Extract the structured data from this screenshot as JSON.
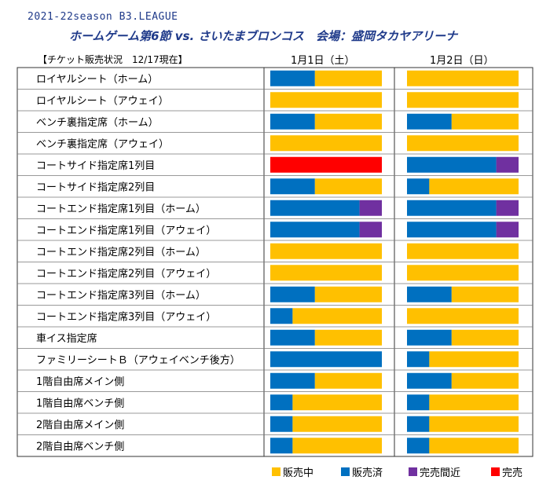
{
  "header": {
    "line1": "2021-22season B3.LEAGUE",
    "line2": "ホームゲーム第6節 vs. さいたまブロンコス　会場：盛岡タカヤアリーナ",
    "status": "【チケット販売状況　12/17現在】"
  },
  "chart_data": {
    "type": "bar",
    "orientation": "horizontal",
    "stacked": true,
    "dates": [
      "1月1日（土）",
      "1月2日（日）"
    ],
    "categories": [
      "ロイヤルシート（ホーム）",
      "ロイヤルシート（アウェイ）",
      "ベンチ裏指定席（ホーム）",
      "ベンチ裏指定席（アウェイ）",
      "コートサイド指定席1列目",
      "コートサイド指定席2列目",
      "コートエンド指定席1列目（ホーム）",
      "コートエンド指定席1列目（アウェイ）",
      "コートエンド指定席2列目（ホーム）",
      "コートエンド指定席2列目（アウェイ）",
      "コートエンド指定席3列目（ホーム）",
      "コートエンド指定席3列目（アウェイ）",
      "車イス指定席",
      "ファミリーシートＢ（アウェイベンチ後方）",
      "1階自由席メイン側",
      "1階自由席ベンチ側",
      "2階自由席メイン側",
      "2階自由席ベンチ側"
    ],
    "statuses": [
      {
        "key": "on_sale",
        "label": "販売中",
        "color": "#FFC000"
      },
      {
        "key": "sold",
        "label": "販売済",
        "color": "#0070C0"
      },
      {
        "key": "almost",
        "label": "完売間近",
        "color": "#7030A0"
      },
      {
        "key": "sold_out",
        "label": "完売",
        "color": "#FF0000"
      }
    ],
    "stack_order": [
      "sold_out",
      "sold",
      "almost",
      "on_sale"
    ],
    "series": [
      {
        "date_index": 0,
        "values": [
          {
            "sold": 40,
            "almost": 0,
            "on_sale": 60,
            "sold_out": 0
          },
          {
            "sold": 0,
            "almost": 0,
            "on_sale": 100,
            "sold_out": 0
          },
          {
            "sold": 40,
            "almost": 0,
            "on_sale": 60,
            "sold_out": 0
          },
          {
            "sold": 0,
            "almost": 0,
            "on_sale": 100,
            "sold_out": 0
          },
          {
            "sold": 0,
            "almost": 0,
            "on_sale": 0,
            "sold_out": 100
          },
          {
            "sold": 40,
            "almost": 0,
            "on_sale": 60,
            "sold_out": 0
          },
          {
            "sold": 80,
            "almost": 20,
            "on_sale": 0,
            "sold_out": 0
          },
          {
            "sold": 80,
            "almost": 20,
            "on_sale": 0,
            "sold_out": 0
          },
          {
            "sold": 0,
            "almost": 0,
            "on_sale": 100,
            "sold_out": 0
          },
          {
            "sold": 0,
            "almost": 0,
            "on_sale": 100,
            "sold_out": 0
          },
          {
            "sold": 40,
            "almost": 0,
            "on_sale": 60,
            "sold_out": 0
          },
          {
            "sold": 20,
            "almost": 0,
            "on_sale": 80,
            "sold_out": 0
          },
          {
            "sold": 40,
            "almost": 0,
            "on_sale": 60,
            "sold_out": 0
          },
          {
            "sold": 100,
            "almost": 0,
            "on_sale": 0,
            "sold_out": 0
          },
          {
            "sold": 40,
            "almost": 0,
            "on_sale": 60,
            "sold_out": 0
          },
          {
            "sold": 20,
            "almost": 0,
            "on_sale": 80,
            "sold_out": 0
          },
          {
            "sold": 20,
            "almost": 0,
            "on_sale": 80,
            "sold_out": 0
          },
          {
            "sold": 20,
            "almost": 0,
            "on_sale": 80,
            "sold_out": 0
          }
        ]
      },
      {
        "date_index": 1,
        "values": [
          {
            "sold": 0,
            "almost": 0,
            "on_sale": 100,
            "sold_out": 0
          },
          {
            "sold": 0,
            "almost": 0,
            "on_sale": 100,
            "sold_out": 0
          },
          {
            "sold": 40,
            "almost": 0,
            "on_sale": 60,
            "sold_out": 0
          },
          {
            "sold": 0,
            "almost": 0,
            "on_sale": 100,
            "sold_out": 0
          },
          {
            "sold": 80,
            "almost": 20,
            "on_sale": 0,
            "sold_out": 0
          },
          {
            "sold": 20,
            "almost": 0,
            "on_sale": 80,
            "sold_out": 0
          },
          {
            "sold": 80,
            "almost": 20,
            "on_sale": 0,
            "sold_out": 0
          },
          {
            "sold": 80,
            "almost": 20,
            "on_sale": 0,
            "sold_out": 0
          },
          {
            "sold": 0,
            "almost": 0,
            "on_sale": 100,
            "sold_out": 0
          },
          {
            "sold": 0,
            "almost": 0,
            "on_sale": 100,
            "sold_out": 0
          },
          {
            "sold": 40,
            "almost": 0,
            "on_sale": 60,
            "sold_out": 0
          },
          {
            "sold": 0,
            "almost": 0,
            "on_sale": 100,
            "sold_out": 0
          },
          {
            "sold": 40,
            "almost": 0,
            "on_sale": 60,
            "sold_out": 0
          },
          {
            "sold": 20,
            "almost": 0,
            "on_sale": 80,
            "sold_out": 0
          },
          {
            "sold": 40,
            "almost": 0,
            "on_sale": 60,
            "sold_out": 0
          },
          {
            "sold": 20,
            "almost": 0,
            "on_sale": 80,
            "sold_out": 0
          },
          {
            "sold": 20,
            "almost": 0,
            "on_sale": 80,
            "sold_out": 0
          },
          {
            "sold": 20,
            "almost": 0,
            "on_sale": 80,
            "sold_out": 0
          }
        ]
      }
    ],
    "legend": {
      "position": "bottom-right"
    },
    "grid": true
  }
}
